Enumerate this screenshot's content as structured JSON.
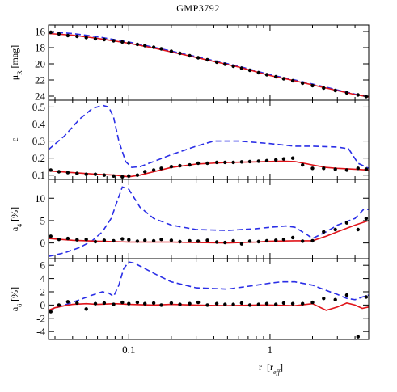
{
  "chart_data": {
    "type": "line",
    "title": "GMP3792",
    "xlabel_main": "r",
    "xlabel_unit_open": "[r",
    "xlabel_unit_sub": "eff",
    "xlabel_unit_close": "]",
    "x_scale": "log",
    "xlim": [
      0.027,
      5.0
    ],
    "x_ticks": [
      {
        "value": 0.1,
        "label": "0.1"
      },
      {
        "value": 1,
        "label": "1"
      }
    ],
    "colors": {
      "model": "#2a2ee6",
      "fit": "#e0141a",
      "data": "#000000"
    },
    "panels": [
      {
        "id": "mu",
        "ylabel_main": "μ",
        "ylabel_sub": "R",
        "ylabel_unit": "[mag]",
        "ylim": [
          24.5,
          15.2
        ],
        "y_inverted": true,
        "y_ticks": [
          16,
          18,
          20,
          22,
          24
        ],
        "model": {
          "x": [
            0.027,
            0.04,
            0.06,
            0.1,
            0.15,
            0.25,
            0.4,
            0.6,
            1.0,
            1.5,
            2.5,
            4.0,
            5.0
          ],
          "y": [
            16.05,
            16.25,
            16.65,
            17.3,
            17.95,
            18.8,
            19.6,
            20.3,
            21.35,
            22.0,
            22.9,
            23.75,
            24.1
          ]
        },
        "fit": {
          "x": [
            0.027,
            0.04,
            0.06,
            0.1,
            0.15,
            0.25,
            0.4,
            0.6,
            1.0,
            1.5,
            2.5,
            4.0,
            5.0
          ],
          "y": [
            16.25,
            16.45,
            16.85,
            17.45,
            18.05,
            18.9,
            19.7,
            20.4,
            21.45,
            22.1,
            23.0,
            23.8,
            24.1
          ]
        },
        "points": {
          "x": [
            0.028,
            0.032,
            0.037,
            0.043,
            0.05,
            0.058,
            0.067,
            0.078,
            0.09,
            0.1,
            0.115,
            0.13,
            0.15,
            0.17,
            0.2,
            0.23,
            0.27,
            0.31,
            0.36,
            0.42,
            0.48,
            0.55,
            0.63,
            0.72,
            0.83,
            0.95,
            1.1,
            1.25,
            1.45,
            1.7,
            2.0,
            2.4,
            2.9,
            3.5,
            4.2,
            4.8
          ],
          "y": [
            16.1,
            16.3,
            16.5,
            16.6,
            16.75,
            16.9,
            17.0,
            17.15,
            17.3,
            17.45,
            17.6,
            17.75,
            17.95,
            18.15,
            18.45,
            18.7,
            19.0,
            19.25,
            19.5,
            19.8,
            20.05,
            20.3,
            20.55,
            20.8,
            21.1,
            21.35,
            21.6,
            21.85,
            22.1,
            22.4,
            22.7,
            23.0,
            23.3,
            23.6,
            23.85,
            24.05
          ]
        }
      },
      {
        "id": "ellipticity",
        "ylabel_main": "ε",
        "ylim": [
          0.075,
          0.54
        ],
        "y_ticks": [
          0.1,
          0.2,
          0.3,
          0.4,
          0.5
        ],
        "y_tick_labels": [
          "0.1",
          "0.2",
          "0.3",
          "0.4",
          "0.5"
        ],
        "model": {
          "x": [
            0.027,
            0.035,
            0.045,
            0.055,
            0.065,
            0.072,
            0.078,
            0.085,
            0.095,
            0.105,
            0.12,
            0.15,
            0.2,
            0.3,
            0.4,
            0.6,
            1.0,
            1.5,
            2.0,
            3.0,
            3.6,
            4.2,
            5.0
          ],
          "y": [
            0.25,
            0.33,
            0.43,
            0.49,
            0.51,
            0.5,
            0.44,
            0.3,
            0.18,
            0.145,
            0.15,
            0.18,
            0.22,
            0.27,
            0.3,
            0.3,
            0.285,
            0.27,
            0.27,
            0.265,
            0.255,
            0.17,
            0.14
          ]
        },
        "fit": {
          "x": [
            0.027,
            0.04,
            0.06,
            0.08,
            0.1,
            0.12,
            0.15,
            0.2,
            0.3,
            0.5,
            0.8,
            1.2,
            1.5,
            2.0,
            2.5,
            3.0,
            4.0,
            5.0
          ],
          "y": [
            0.125,
            0.115,
            0.105,
            0.1,
            0.09,
            0.1,
            0.12,
            0.145,
            0.165,
            0.175,
            0.178,
            0.182,
            0.18,
            0.16,
            0.145,
            0.14,
            0.135,
            0.13
          ]
        },
        "points": {
          "x": [
            0.028,
            0.032,
            0.037,
            0.043,
            0.05,
            0.058,
            0.067,
            0.078,
            0.09,
            0.1,
            0.115,
            0.13,
            0.15,
            0.17,
            0.2,
            0.23,
            0.27,
            0.31,
            0.36,
            0.42,
            0.48,
            0.55,
            0.63,
            0.72,
            0.83,
            0.95,
            1.1,
            1.25,
            1.45,
            1.7,
            2.0,
            2.4,
            2.9,
            3.5,
            4.2,
            4.8
          ],
          "y": [
            0.13,
            0.12,
            0.115,
            0.11,
            0.105,
            0.105,
            0.1,
            0.095,
            0.09,
            0.095,
            0.1,
            0.12,
            0.13,
            0.14,
            0.15,
            0.155,
            0.16,
            0.17,
            0.17,
            0.175,
            0.175,
            0.175,
            0.178,
            0.18,
            0.182,
            0.185,
            0.19,
            0.195,
            0.2,
            0.16,
            0.14,
            0.14,
            0.135,
            0.13,
            0.14,
            0.135
          ]
        }
      },
      {
        "id": "a4",
        "ylabel_main": "a",
        "ylabel_sub": "4",
        "ylabel_unit": "[%]",
        "ylim": [
          -3.5,
          14.2
        ],
        "y_ticks": [
          0,
          5,
          10
        ],
        "model": {
          "x": [
            0.027,
            0.035,
            0.045,
            0.055,
            0.065,
            0.075,
            0.082,
            0.09,
            0.1,
            0.12,
            0.15,
            0.2,
            0.3,
            0.5,
            0.8,
            1.0,
            1.3,
            1.5,
            1.8,
            2.0,
            2.5,
            3.0,
            4.0,
            4.6,
            5.0
          ],
          "y": [
            -3.0,
            -2.2,
            -1.0,
            0.5,
            2.5,
            5.5,
            9.0,
            12.5,
            12.0,
            8.0,
            5.5,
            4.0,
            3.0,
            2.8,
            3.2,
            3.5,
            3.8,
            3.5,
            2.0,
            1.0,
            2.5,
            4.0,
            5.5,
            7.5,
            7.5
          ]
        },
        "fit": {
          "x": [
            0.027,
            0.04,
            0.06,
            0.08,
            0.1,
            0.15,
            0.2,
            0.3,
            0.5,
            0.8,
            1.0,
            1.5,
            2.0,
            2.5,
            3.0,
            4.0,
            5.0
          ],
          "y": [
            1.0,
            0.6,
            0.4,
            0.3,
            0.2,
            0.2,
            0.2,
            0.1,
            0.0,
            0.2,
            0.4,
            0.5,
            0.5,
            1.5,
            2.5,
            4.0,
            5.0
          ]
        },
        "points": {
          "x": [
            0.028,
            0.032,
            0.037,
            0.043,
            0.05,
            0.058,
            0.067,
            0.078,
            0.09,
            0.1,
            0.115,
            0.13,
            0.15,
            0.17,
            0.2,
            0.23,
            0.27,
            0.31,
            0.36,
            0.42,
            0.48,
            0.55,
            0.63,
            0.72,
            0.83,
            0.95,
            1.1,
            1.25,
            1.45,
            1.7,
            2.0,
            2.4,
            2.9,
            3.5,
            4.2,
            4.8
          ],
          "y": [
            1.5,
            0.8,
            1.0,
            0.7,
            0.8,
            0.3,
            0.6,
            0.5,
            0.9,
            0.7,
            0.4,
            0.6,
            0.5,
            0.8,
            0.6,
            0.3,
            0.5,
            0.4,
            0.6,
            0.2,
            0.1,
            0.5,
            -0.2,
            0.4,
            0.3,
            0.5,
            0.6,
            0.8,
            1.2,
            0.4,
            0.5,
            2.5,
            3.0,
            4.5,
            3.0,
            5.5
          ]
        }
      },
      {
        "id": "a6",
        "ylabel_main": "a",
        "ylabel_sub": "6",
        "ylabel_unit": "[%]",
        "ylim": [
          -5.2,
          7.0
        ],
        "y_ticks": [
          -4,
          -2,
          0,
          2,
          4,
          6
        ],
        "model": {
          "x": [
            0.027,
            0.035,
            0.045,
            0.055,
            0.065,
            0.072,
            0.078,
            0.085,
            0.092,
            0.1,
            0.11,
            0.13,
            0.16,
            0.2,
            0.3,
            0.5,
            0.8,
            1.0,
            1.2,
            1.5,
            2.0,
            2.5,
            3.0,
            3.5,
            4.0,
            4.5,
            5.0
          ],
          "y": [
            -0.8,
            0.0,
            0.8,
            1.5,
            2.0,
            1.8,
            1.3,
            3.0,
            5.5,
            6.5,
            6.3,
            5.5,
            4.5,
            3.5,
            2.6,
            2.4,
            3.0,
            3.3,
            3.5,
            3.5,
            3.0,
            2.2,
            1.6,
            1.0,
            0.8,
            1.2,
            1.5
          ]
        },
        "fit": {
          "x": [
            0.027,
            0.03,
            0.035,
            0.04,
            0.05,
            0.06,
            0.08,
            0.1,
            0.15,
            0.2,
            0.3,
            0.5,
            0.8,
            1.0,
            1.5,
            2.0,
            2.5,
            3.0,
            3.5,
            4.0,
            4.5,
            5.0
          ],
          "y": [
            -0.8,
            -0.4,
            -0.1,
            0.1,
            0.2,
            0.1,
            0.2,
            0.1,
            0.0,
            0.1,
            0.0,
            -0.1,
            0.0,
            0.0,
            -0.1,
            0.2,
            -0.8,
            -0.3,
            0.3,
            0.0,
            -0.5,
            -0.3
          ]
        },
        "points": {
          "x": [
            0.028,
            0.032,
            0.037,
            0.043,
            0.05,
            0.058,
            0.067,
            0.078,
            0.09,
            0.1,
            0.115,
            0.13,
            0.15,
            0.17,
            0.2,
            0.23,
            0.27,
            0.31,
            0.36,
            0.42,
            0.48,
            0.55,
            0.63,
            0.72,
            0.83,
            0.95,
            1.1,
            1.25,
            1.45,
            1.7,
            2.0,
            2.4,
            2.9,
            3.5,
            4.2,
            4.8
          ],
          "y": [
            -1.0,
            0.0,
            0.5,
            0.3,
            -0.6,
            0.2,
            0.3,
            0.1,
            0.4,
            0.2,
            0.4,
            0.2,
            0.3,
            0.0,
            0.3,
            0.1,
            0.2,
            0.4,
            0.0,
            0.2,
            0.1,
            0.1,
            0.3,
            0.0,
            0.1,
            0.2,
            0.1,
            0.3,
            0.2,
            0.2,
            0.4,
            1.0,
            0.8,
            1.5,
            -4.8,
            1.2
          ]
        }
      }
    ]
  }
}
